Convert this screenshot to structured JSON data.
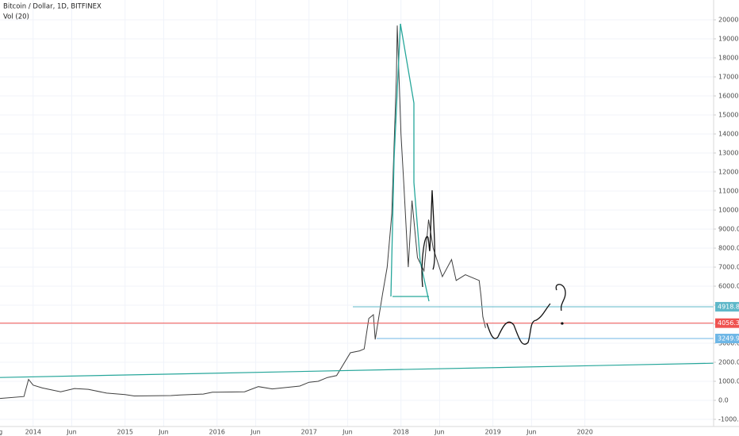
{
  "chart_data": {
    "type": "line",
    "title": "Bitcoin / Dollar, 1D, BITFINEX",
    "subtitle": "Vol (20)",
    "xlim": [
      2013.64,
      2021.4
    ],
    "xticks": [
      {
        "value": 2013.6,
        "label": "Aug"
      },
      {
        "value": 2014,
        "label": "2014"
      },
      {
        "value": 2014.42,
        "label": "Jun"
      },
      {
        "value": 2015,
        "label": "2015"
      },
      {
        "value": 2015.42,
        "label": "Jun"
      },
      {
        "value": 2016,
        "label": "2016"
      },
      {
        "value": 2016.42,
        "label": "Jun"
      },
      {
        "value": 2017,
        "label": "2017"
      },
      {
        "value": 2017.42,
        "label": "Jun"
      },
      {
        "value": 2018,
        "label": "2018"
      },
      {
        "value": 2018.42,
        "label": "Jun"
      },
      {
        "value": 2019,
        "label": "2019"
      },
      {
        "value": 2019.42,
        "label": "Jun"
      },
      {
        "value": 2020,
        "label": "2020"
      }
    ],
    "ylim": [
      -1250,
      21042
    ],
    "yticks": [
      {
        "value": -1000,
        "label": "-1000.0"
      },
      {
        "value": 0,
        "label": "0.0"
      },
      {
        "value": 1000,
        "label": "1000.0"
      },
      {
        "value": 2000,
        "label": "2000.0"
      },
      {
        "value": 3000,
        "label": "3000.0"
      },
      {
        "value": 4000,
        "label": "4000.0"
      },
      {
        "value": 5000,
        "label": "5000.0"
      },
      {
        "value": 6000,
        "label": "6000.0"
      },
      {
        "value": 7000,
        "label": "7000.0"
      },
      {
        "value": 8000,
        "label": "8000.0"
      },
      {
        "value": 9000,
        "label": "9000.0"
      },
      {
        "value": 10000,
        "label": "10000.0"
      },
      {
        "value": 11000,
        "label": "11000.0"
      },
      {
        "value": 12000,
        "label": "12000.0"
      },
      {
        "value": 13000,
        "label": "13000.0"
      },
      {
        "value": 14000,
        "label": "14000.0"
      },
      {
        "value": 15000,
        "label": "15000.0"
      },
      {
        "value": 16000,
        "label": "16000.0"
      },
      {
        "value": 17000,
        "label": "17000.0"
      },
      {
        "value": 18000,
        "label": "18000.0"
      },
      {
        "value": 19000,
        "label": "19000.0"
      },
      {
        "value": 20000,
        "label": "20000.0"
      }
    ],
    "grid": true,
    "series": [
      {
        "color": "#3f3f3f",
        "x": [
          2013.64,
          2013.9,
          2013.95,
          2014.0,
          2014.1,
          2014.3,
          2014.45,
          2014.6,
          2014.8,
          2015.0,
          2015.1,
          2015.5,
          2015.6,
          2015.85,
          2015.95,
          2016.0,
          2016.3,
          2016.45,
          2016.6,
          2016.9,
          2017.0,
          2017.1,
          2017.2,
          2017.3,
          2017.45,
          2017.55,
          2017.6,
          2017.65,
          2017.7,
          2017.72,
          2017.8,
          2017.85,
          2017.9,
          2017.95,
          2017.96,
          2018.0,
          2018.03,
          2018.08,
          2018.12,
          2018.18,
          2018.25,
          2018.3,
          2018.35,
          2018.45,
          2018.55,
          2018.6,
          2018.7,
          2018.8,
          2018.85,
          2018.87,
          2018.89,
          2018.92
        ],
        "values": [
          100,
          200,
          1100,
          800,
          650,
          450,
          620,
          580,
          380,
          300,
          230,
          250,
          280,
          330,
          430,
          430,
          450,
          720,
          600,
          750,
          950,
          1000,
          1200,
          1300,
          2500,
          2600,
          2700,
          4300,
          4500,
          3200,
          5600,
          7000,
          9800,
          17000,
          19700,
          14000,
          11500,
          7000,
          10500,
          7500,
          6800,
          9500,
          8000,
          6500,
          7400,
          6300,
          6600,
          6400,
          6300,
          5500,
          4400,
          3800
        ]
      }
    ],
    "trendline": {
      "color": "#26a69a",
      "x": [
        2013.64,
        2021.4
      ],
      "values": [
        1200,
        1950
      ]
    },
    "levels": [
      {
        "value": 4918.8,
        "color": "#5fb8c9"
      },
      {
        "value": 4056.3,
        "color": "#ef5350"
      },
      {
        "value": 3249.9,
        "color": "#6fb7e6"
      }
    ]
  }
}
